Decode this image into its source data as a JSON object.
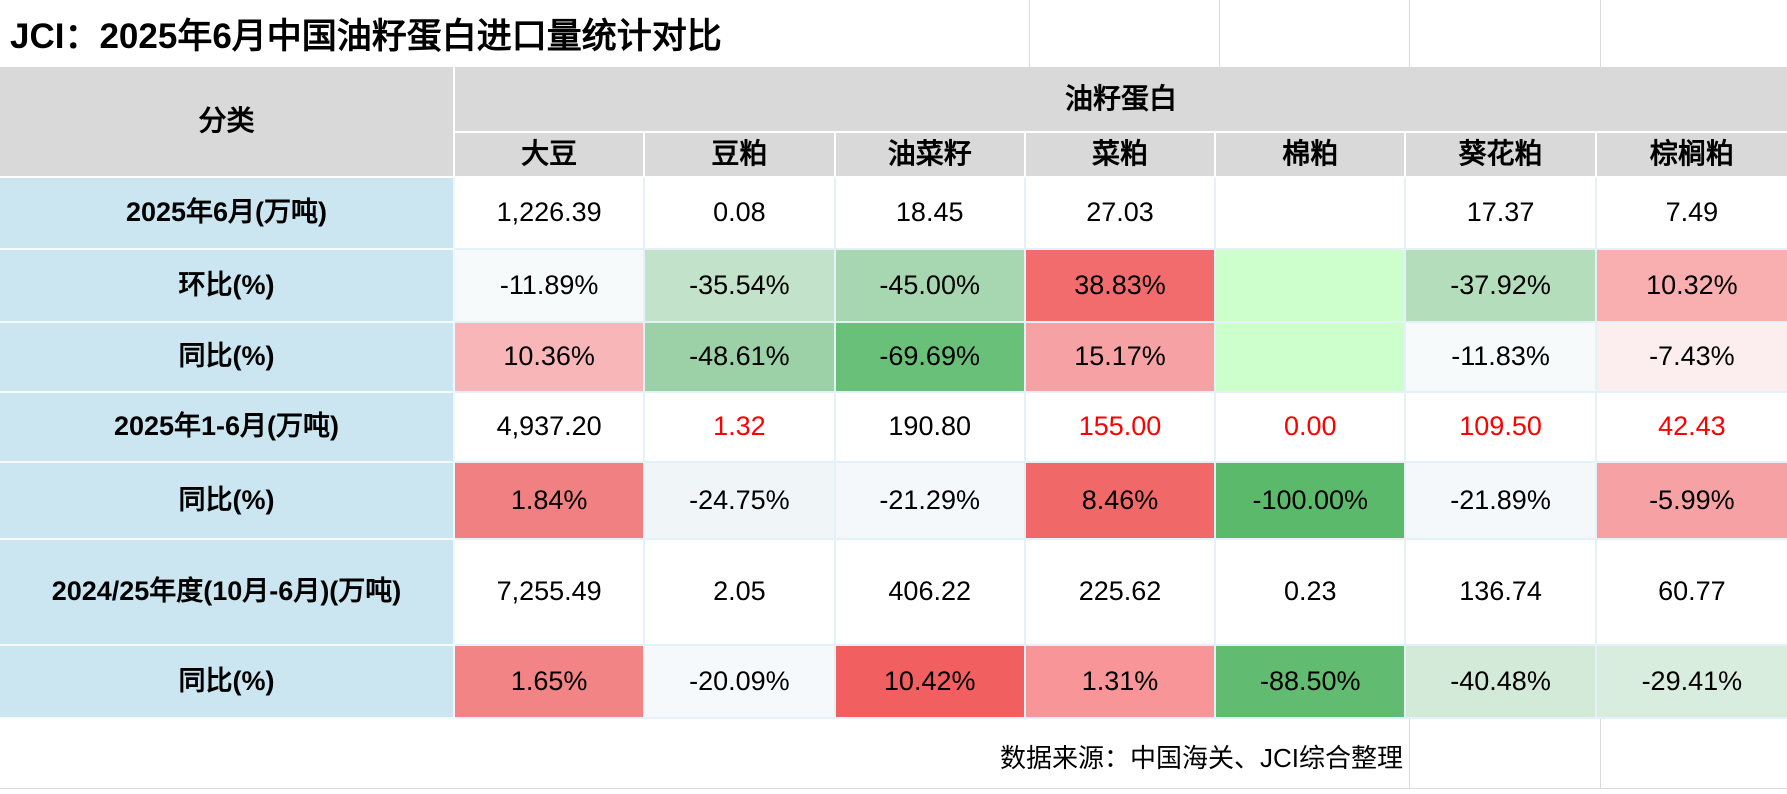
{
  "title": "JCI：2025年6月中国油籽蛋白进口量统计对比",
  "header": {
    "category_label": "分类",
    "group_label": "油籽蛋白",
    "columns": [
      "大豆",
      "豆粕",
      "油菜籽",
      "菜粕",
      "棉粕",
      "葵花粕",
      "棕榈粕"
    ]
  },
  "colors": {
    "header_bg": "#d9d9d9",
    "row_label_bg": "#cbe6f0",
    "gridline": "#e4f1f8",
    "negative_value_text": "#ff0000"
  },
  "chart_data": {
    "type": "table",
    "title": "JCI：2025年6月中国油籽蛋白进口量统计对比",
    "group_header": "油籽蛋白",
    "categories": [
      "大豆",
      "豆粕",
      "油菜籽",
      "菜粕",
      "棉粕",
      "葵花粕",
      "棕榈粕"
    ],
    "series": [
      {
        "name": "2025年6月(万吨)",
        "values": [
          "1,226.39",
          "0.08",
          "18.45",
          "27.03",
          "",
          "17.37",
          "7.49"
        ]
      },
      {
        "name": "环比(%)",
        "values": [
          "-11.89%",
          "-35.54%",
          "-45.00%",
          "38.83%",
          "",
          "-37.92%",
          "10.32%"
        ]
      },
      {
        "name": "同比(%)",
        "values": [
          "10.36%",
          "-48.61%",
          "-69.69%",
          "15.17%",
          "",
          "-11.83%",
          "-7.43%"
        ]
      },
      {
        "name": "2025年1-6月(万吨)",
        "values": [
          "4,937.20",
          "1.32",
          "190.80",
          "155.00",
          "0.00",
          "109.50",
          "42.43"
        ]
      },
      {
        "name": "同比(%)",
        "values": [
          "1.84%",
          "-24.75%",
          "-21.29%",
          "8.46%",
          "-100.00%",
          "-21.89%",
          "-5.99%"
        ]
      },
      {
        "name": "2024/25年度(10月-6月)(万吨)",
        "values": [
          "7,255.49",
          "2.05",
          "406.22",
          "225.62",
          "0.23",
          "136.74",
          "60.77"
        ]
      },
      {
        "name": "同比(%)",
        "values": [
          "1.65%",
          "-20.09%",
          "10.42%",
          "1.31%",
          "-88.50%",
          "-40.48%",
          "-29.41%"
        ]
      }
    ]
  },
  "rows": [
    {
      "label": "2025年6月(万吨)",
      "cells": [
        {
          "text": "1,226.39",
          "bg": "#ffffff"
        },
        {
          "text": "0.08",
          "bg": "#ffffff"
        },
        {
          "text": "18.45",
          "bg": "#ffffff"
        },
        {
          "text": "27.03",
          "bg": "#ffffff"
        },
        {
          "text": "",
          "bg": "#ffffff"
        },
        {
          "text": "17.37",
          "bg": "#ffffff"
        },
        {
          "text": "7.49",
          "bg": "#ffffff"
        }
      ]
    },
    {
      "label": "环比(%)",
      "cells": [
        {
          "text": "-11.89%",
          "bg": "#f7fafb"
        },
        {
          "text": "-35.54%",
          "bg": "#c2e2c9"
        },
        {
          "text": "-45.00%",
          "bg": "#a7d7b1"
        },
        {
          "text": "38.83%",
          "bg": "#f26c6d"
        },
        {
          "text": "",
          "bg": "#ccffcc"
        },
        {
          "text": "-37.92%",
          "bg": "#b3ddbb"
        },
        {
          "text": "10.32%",
          "bg": "#f9aeb0"
        }
      ]
    },
    {
      "label": "同比(%)",
      "cells": [
        {
          "text": "10.36%",
          "bg": "#f8b6b9"
        },
        {
          "text": "-48.61%",
          "bg": "#9cd1a8"
        },
        {
          "text": "-69.69%",
          "bg": "#69c078"
        },
        {
          "text": "15.17%",
          "bg": "#f6a1a3"
        },
        {
          "text": "",
          "bg": "#ccffcc"
        },
        {
          "text": "-11.83%",
          "bg": "#f6fafb"
        },
        {
          "text": "-7.43%",
          "bg": "#fcedee"
        }
      ]
    },
    {
      "label": "2025年1-6月(万吨)",
      "cells": [
        {
          "text": "4,937.20",
          "bg": "#ffffff"
        },
        {
          "text": "1.32",
          "bg": "#ffffff",
          "fg": "#ff0000"
        },
        {
          "text": "190.80",
          "bg": "#ffffff"
        },
        {
          "text": "155.00",
          "bg": "#ffffff",
          "fg": "#ff0000"
        },
        {
          "text": "0.00",
          "bg": "#ffffff",
          "fg": "#ff0000"
        },
        {
          "text": "109.50",
          "bg": "#ffffff",
          "fg": "#ff0000"
        },
        {
          "text": "42.43",
          "bg": "#ffffff",
          "fg": "#ff0000"
        }
      ]
    },
    {
      "label": "同比(%)",
      "cells": [
        {
          "text": "1.84%",
          "bg": "#f08082"
        },
        {
          "text": "-24.75%",
          "bg": "#f0f6f7"
        },
        {
          "text": "-21.29%",
          "bg": "#f4f8fa"
        },
        {
          "text": "8.46%",
          "bg": "#f16869"
        },
        {
          "text": "-100.00%",
          "bg": "#5bb96b"
        },
        {
          "text": "-21.89%",
          "bg": "#f4f8fa"
        },
        {
          "text": "-5.99%",
          "bg": "#f6a1a3"
        }
      ]
    },
    {
      "label": "2024/25年度(10月-6月)(万吨)",
      "cells": [
        {
          "text": "7,255.49",
          "bg": "#ffffff"
        },
        {
          "text": "2.05",
          "bg": "#ffffff"
        },
        {
          "text": "406.22",
          "bg": "#ffffff"
        },
        {
          "text": "225.62",
          "bg": "#ffffff"
        },
        {
          "text": "0.23",
          "bg": "#ffffff"
        },
        {
          "text": "136.74",
          "bg": "#ffffff"
        },
        {
          "text": "60.77",
          "bg": "#ffffff"
        }
      ]
    },
    {
      "label": "同比(%)",
      "cells": [
        {
          "text": "1.65%",
          "bg": "#f28486"
        },
        {
          "text": "-20.09%",
          "bg": "#f6f9fb"
        },
        {
          "text": "10.42%",
          "bg": "#f15f60"
        },
        {
          "text": "1.31%",
          "bg": "#f79598"
        },
        {
          "text": "-88.50%",
          "bg": "#61bb70"
        },
        {
          "text": "-40.48%",
          "bg": "#d4ead9"
        },
        {
          "text": "-29.41%",
          "bg": "#d9edde"
        }
      ]
    }
  ],
  "footer": {
    "source": "数据来源：中国海关、JCI综合整理"
  }
}
